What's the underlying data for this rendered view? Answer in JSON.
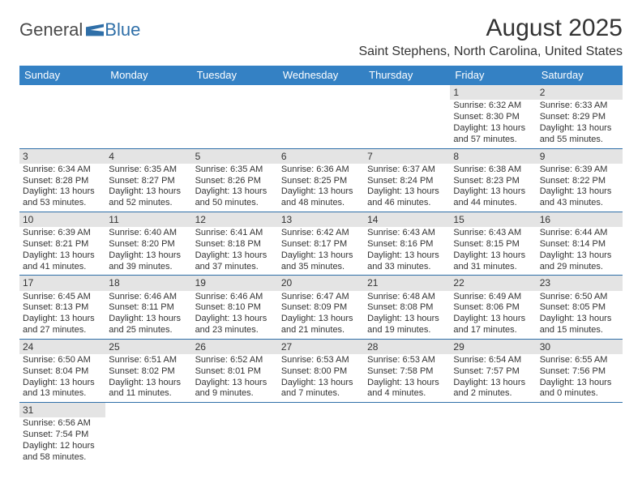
{
  "brand": {
    "part1": "General",
    "part2": "Blue"
  },
  "title": "August 2025",
  "location": "Saint Stephens, North Carolina, United States",
  "colors": {
    "header_bg": "#3481c4",
    "header_text": "#ffffff",
    "daynum_bg": "#e4e4e4",
    "row_border": "#2f6fa8",
    "text": "#333333",
    "brand_blue": "#2f6fa8"
  },
  "dayHeaders": [
    "Sunday",
    "Monday",
    "Tuesday",
    "Wednesday",
    "Thursday",
    "Friday",
    "Saturday"
  ],
  "weeks": [
    [
      {
        "n": "",
        "sr": "",
        "ss": "",
        "dl": ""
      },
      {
        "n": "",
        "sr": "",
        "ss": "",
        "dl": ""
      },
      {
        "n": "",
        "sr": "",
        "ss": "",
        "dl": ""
      },
      {
        "n": "",
        "sr": "",
        "ss": "",
        "dl": ""
      },
      {
        "n": "",
        "sr": "",
        "ss": "",
        "dl": ""
      },
      {
        "n": "1",
        "sr": "Sunrise: 6:32 AM",
        "ss": "Sunset: 8:30 PM",
        "dl": "Daylight: 13 hours and 57 minutes."
      },
      {
        "n": "2",
        "sr": "Sunrise: 6:33 AM",
        "ss": "Sunset: 8:29 PM",
        "dl": "Daylight: 13 hours and 55 minutes."
      }
    ],
    [
      {
        "n": "3",
        "sr": "Sunrise: 6:34 AM",
        "ss": "Sunset: 8:28 PM",
        "dl": "Daylight: 13 hours and 53 minutes."
      },
      {
        "n": "4",
        "sr": "Sunrise: 6:35 AM",
        "ss": "Sunset: 8:27 PM",
        "dl": "Daylight: 13 hours and 52 minutes."
      },
      {
        "n": "5",
        "sr": "Sunrise: 6:35 AM",
        "ss": "Sunset: 8:26 PM",
        "dl": "Daylight: 13 hours and 50 minutes."
      },
      {
        "n": "6",
        "sr": "Sunrise: 6:36 AM",
        "ss": "Sunset: 8:25 PM",
        "dl": "Daylight: 13 hours and 48 minutes."
      },
      {
        "n": "7",
        "sr": "Sunrise: 6:37 AM",
        "ss": "Sunset: 8:24 PM",
        "dl": "Daylight: 13 hours and 46 minutes."
      },
      {
        "n": "8",
        "sr": "Sunrise: 6:38 AM",
        "ss": "Sunset: 8:23 PM",
        "dl": "Daylight: 13 hours and 44 minutes."
      },
      {
        "n": "9",
        "sr": "Sunrise: 6:39 AM",
        "ss": "Sunset: 8:22 PM",
        "dl": "Daylight: 13 hours and 43 minutes."
      }
    ],
    [
      {
        "n": "10",
        "sr": "Sunrise: 6:39 AM",
        "ss": "Sunset: 8:21 PM",
        "dl": "Daylight: 13 hours and 41 minutes."
      },
      {
        "n": "11",
        "sr": "Sunrise: 6:40 AM",
        "ss": "Sunset: 8:20 PM",
        "dl": "Daylight: 13 hours and 39 minutes."
      },
      {
        "n": "12",
        "sr": "Sunrise: 6:41 AM",
        "ss": "Sunset: 8:18 PM",
        "dl": "Daylight: 13 hours and 37 minutes."
      },
      {
        "n": "13",
        "sr": "Sunrise: 6:42 AM",
        "ss": "Sunset: 8:17 PM",
        "dl": "Daylight: 13 hours and 35 minutes."
      },
      {
        "n": "14",
        "sr": "Sunrise: 6:43 AM",
        "ss": "Sunset: 8:16 PM",
        "dl": "Daylight: 13 hours and 33 minutes."
      },
      {
        "n": "15",
        "sr": "Sunrise: 6:43 AM",
        "ss": "Sunset: 8:15 PM",
        "dl": "Daylight: 13 hours and 31 minutes."
      },
      {
        "n": "16",
        "sr": "Sunrise: 6:44 AM",
        "ss": "Sunset: 8:14 PM",
        "dl": "Daylight: 13 hours and 29 minutes."
      }
    ],
    [
      {
        "n": "17",
        "sr": "Sunrise: 6:45 AM",
        "ss": "Sunset: 8:13 PM",
        "dl": "Daylight: 13 hours and 27 minutes."
      },
      {
        "n": "18",
        "sr": "Sunrise: 6:46 AM",
        "ss": "Sunset: 8:11 PM",
        "dl": "Daylight: 13 hours and 25 minutes."
      },
      {
        "n": "19",
        "sr": "Sunrise: 6:46 AM",
        "ss": "Sunset: 8:10 PM",
        "dl": "Daylight: 13 hours and 23 minutes."
      },
      {
        "n": "20",
        "sr": "Sunrise: 6:47 AM",
        "ss": "Sunset: 8:09 PM",
        "dl": "Daylight: 13 hours and 21 minutes."
      },
      {
        "n": "21",
        "sr": "Sunrise: 6:48 AM",
        "ss": "Sunset: 8:08 PM",
        "dl": "Daylight: 13 hours and 19 minutes."
      },
      {
        "n": "22",
        "sr": "Sunrise: 6:49 AM",
        "ss": "Sunset: 8:06 PM",
        "dl": "Daylight: 13 hours and 17 minutes."
      },
      {
        "n": "23",
        "sr": "Sunrise: 6:50 AM",
        "ss": "Sunset: 8:05 PM",
        "dl": "Daylight: 13 hours and 15 minutes."
      }
    ],
    [
      {
        "n": "24",
        "sr": "Sunrise: 6:50 AM",
        "ss": "Sunset: 8:04 PM",
        "dl": "Daylight: 13 hours and 13 minutes."
      },
      {
        "n": "25",
        "sr": "Sunrise: 6:51 AM",
        "ss": "Sunset: 8:02 PM",
        "dl": "Daylight: 13 hours and 11 minutes."
      },
      {
        "n": "26",
        "sr": "Sunrise: 6:52 AM",
        "ss": "Sunset: 8:01 PM",
        "dl": "Daylight: 13 hours and 9 minutes."
      },
      {
        "n": "27",
        "sr": "Sunrise: 6:53 AM",
        "ss": "Sunset: 8:00 PM",
        "dl": "Daylight: 13 hours and 7 minutes."
      },
      {
        "n": "28",
        "sr": "Sunrise: 6:53 AM",
        "ss": "Sunset: 7:58 PM",
        "dl": "Daylight: 13 hours and 4 minutes."
      },
      {
        "n": "29",
        "sr": "Sunrise: 6:54 AM",
        "ss": "Sunset: 7:57 PM",
        "dl": "Daylight: 13 hours and 2 minutes."
      },
      {
        "n": "30",
        "sr": "Sunrise: 6:55 AM",
        "ss": "Sunset: 7:56 PM",
        "dl": "Daylight: 13 hours and 0 minutes."
      }
    ],
    [
      {
        "n": "31",
        "sr": "Sunrise: 6:56 AM",
        "ss": "Sunset: 7:54 PM",
        "dl": "Daylight: 12 hours and 58 minutes."
      },
      {
        "n": "",
        "sr": "",
        "ss": "",
        "dl": ""
      },
      {
        "n": "",
        "sr": "",
        "ss": "",
        "dl": ""
      },
      {
        "n": "",
        "sr": "",
        "ss": "",
        "dl": ""
      },
      {
        "n": "",
        "sr": "",
        "ss": "",
        "dl": ""
      },
      {
        "n": "",
        "sr": "",
        "ss": "",
        "dl": ""
      },
      {
        "n": "",
        "sr": "",
        "ss": "",
        "dl": ""
      }
    ]
  ]
}
